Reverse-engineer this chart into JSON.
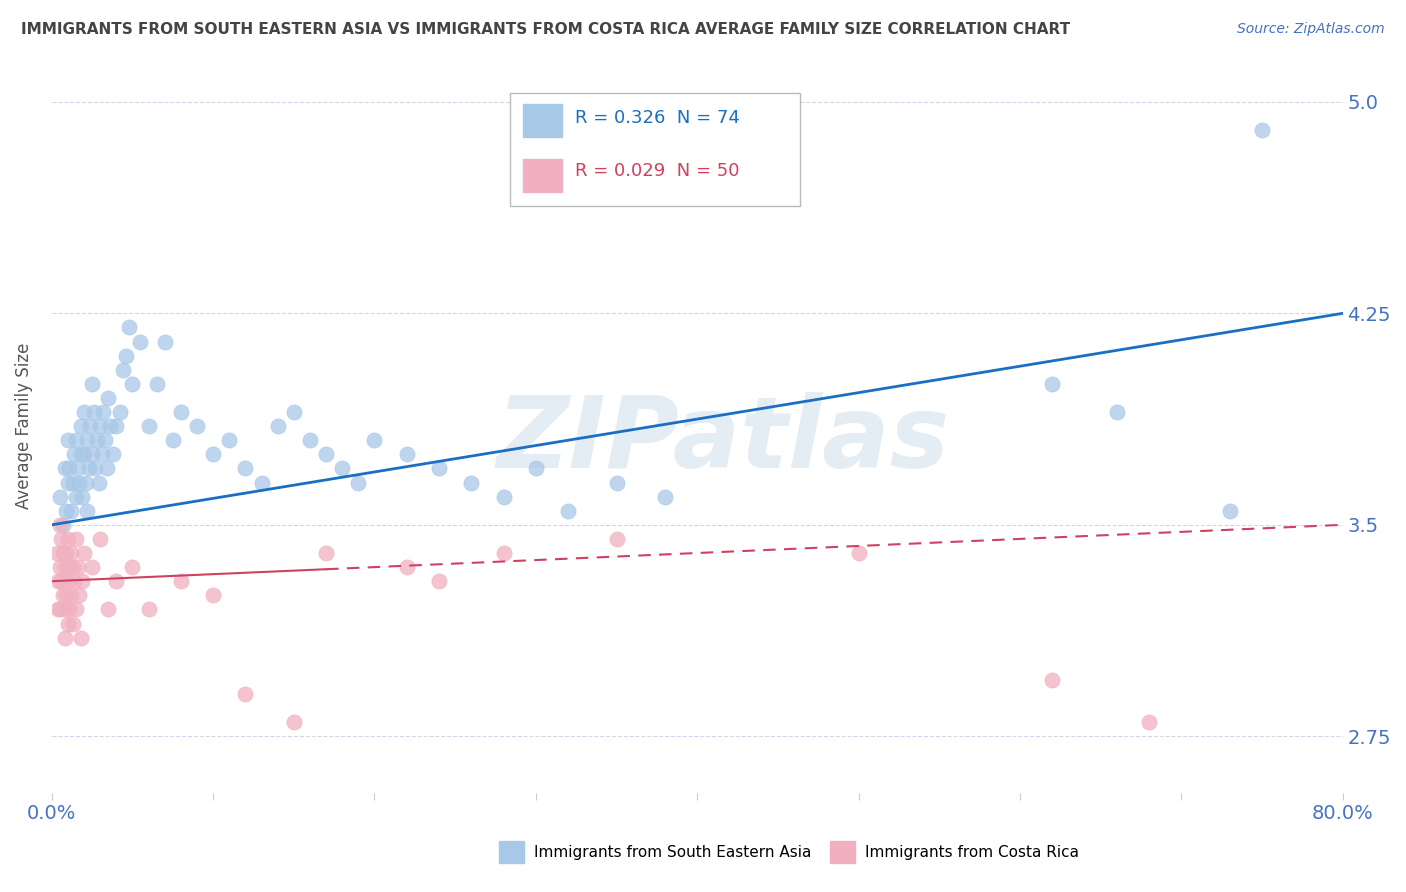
{
  "title": "IMMIGRANTS FROM SOUTH EASTERN ASIA VS IMMIGRANTS FROM COSTA RICA AVERAGE FAMILY SIZE CORRELATION CHART",
  "source": "Source: ZipAtlas.com",
  "ylabel": "Average Family Size",
  "xlim": [
    0.0,
    0.8
  ],
  "ylim": [
    2.55,
    5.15
  ],
  "yticks": [
    2.75,
    3.5,
    4.25,
    5.0
  ],
  "xticks": [
    0.0,
    0.1,
    0.2,
    0.3,
    0.4,
    0.5,
    0.6,
    0.7,
    0.8
  ],
  "blue_color": "#a8c8e8",
  "pink_color": "#f0b0c0",
  "blue_line_color": "#1a6fc4",
  "pink_line_color": "#d04060",
  "watermark": "ZIPatlas",
  "bg_color": "#ffffff",
  "grid_color": "#d0d8e8",
  "title_color": "#444444",
  "axis_label_color": "#555555",
  "tick_label_color": "#4472c4",
  "blue_x": [
    0.005,
    0.007,
    0.008,
    0.009,
    0.01,
    0.01,
    0.011,
    0.012,
    0.013,
    0.014,
    0.015,
    0.015,
    0.016,
    0.017,
    0.018,
    0.018,
    0.019,
    0.02,
    0.02,
    0.021,
    0.022,
    0.022,
    0.023,
    0.024,
    0.025,
    0.025,
    0.026,
    0.027,
    0.028,
    0.029,
    0.03,
    0.031,
    0.032,
    0.033,
    0.034,
    0.035,
    0.036,
    0.038,
    0.04,
    0.042,
    0.044,
    0.046,
    0.048,
    0.05,
    0.055,
    0.06,
    0.065,
    0.07,
    0.075,
    0.08,
    0.09,
    0.1,
    0.11,
    0.12,
    0.13,
    0.14,
    0.15,
    0.16,
    0.17,
    0.18,
    0.19,
    0.2,
    0.22,
    0.24,
    0.26,
    0.28,
    0.3,
    0.32,
    0.35,
    0.38,
    0.62,
    0.66,
    0.73,
    0.75
  ],
  "blue_y": [
    3.6,
    3.5,
    3.7,
    3.55,
    3.65,
    3.8,
    3.7,
    3.55,
    3.65,
    3.75,
    3.6,
    3.8,
    3.7,
    3.65,
    3.75,
    3.85,
    3.6,
    3.75,
    3.9,
    3.65,
    3.8,
    3.55,
    3.7,
    3.85,
    3.75,
    4.0,
    3.9,
    3.7,
    3.8,
    3.65,
    3.85,
    3.75,
    3.9,
    3.8,
    3.7,
    3.95,
    3.85,
    3.75,
    3.85,
    3.9,
    4.05,
    4.1,
    4.2,
    4.0,
    4.15,
    3.85,
    4.0,
    4.15,
    3.8,
    3.9,
    3.85,
    3.75,
    3.8,
    3.7,
    3.65,
    3.85,
    3.9,
    3.8,
    3.75,
    3.7,
    3.65,
    3.8,
    3.75,
    3.7,
    3.65,
    3.6,
    3.7,
    3.55,
    3.65,
    3.6,
    4.0,
    3.9,
    3.55,
    4.9
  ],
  "pink_x": [
    0.003,
    0.004,
    0.004,
    0.005,
    0.005,
    0.005,
    0.006,
    0.006,
    0.007,
    0.007,
    0.008,
    0.008,
    0.008,
    0.009,
    0.009,
    0.01,
    0.01,
    0.01,
    0.011,
    0.011,
    0.012,
    0.012,
    0.013,
    0.013,
    0.014,
    0.015,
    0.015,
    0.016,
    0.017,
    0.018,
    0.019,
    0.02,
    0.025,
    0.03,
    0.035,
    0.04,
    0.05,
    0.06,
    0.08,
    0.1,
    0.12,
    0.15,
    0.17,
    0.22,
    0.24,
    0.28,
    0.35,
    0.5,
    0.62,
    0.68
  ],
  "pink_y": [
    3.4,
    3.3,
    3.2,
    3.5,
    3.35,
    3.2,
    3.45,
    3.3,
    3.4,
    3.25,
    3.35,
    3.2,
    3.1,
    3.4,
    3.25,
    3.45,
    3.3,
    3.15,
    3.35,
    3.2,
    3.4,
    3.25,
    3.35,
    3.15,
    3.3,
    3.45,
    3.2,
    3.35,
    3.25,
    3.1,
    3.3,
    3.4,
    3.35,
    3.45,
    3.2,
    3.3,
    3.35,
    3.2,
    3.3,
    3.25,
    2.9,
    2.8,
    3.4,
    3.35,
    3.3,
    3.4,
    3.45,
    3.4,
    2.95,
    2.8
  ],
  "legend1_text": "R = 0.326  N = 74",
  "legend2_text": "R = 0.029  N = 50",
  "series1_label": "Immigrants from South Eastern Asia",
  "series2_label": "Immigrants from Costa Rica"
}
